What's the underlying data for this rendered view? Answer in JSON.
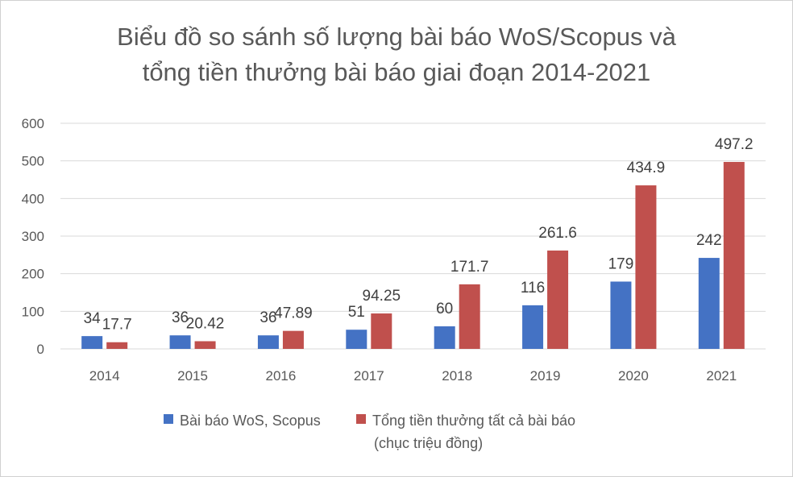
{
  "colors": {
    "series_1": "#4472C4",
    "series_2": "#C0504D",
    "grid": "#D9D9D9",
    "text": "#595959"
  },
  "chart_data": {
    "type": "bar",
    "title_lines": [
      "Biểu đồ so sánh số lượng bài báo WoS/Scopus và",
      "tổng tiền thưởng bài báo giai đoạn 2014-2021"
    ],
    "xlabel": "",
    "ylabel": "",
    "ylim": [
      0,
      600
    ],
    "yticks": [
      "0",
      "100",
      "200",
      "300",
      "400",
      "500",
      "600"
    ],
    "grid": true,
    "legend_position": "bottom",
    "categories": [
      "2014",
      "2015",
      "2016",
      "2017",
      "2018",
      "2019",
      "2020",
      "2021"
    ],
    "series": [
      {
        "name": "Bài báo WoS, Scopus",
        "values": [
          34,
          36,
          36,
          51,
          60,
          116,
          179,
          242
        ],
        "labels": [
          "34",
          "36",
          "36",
          "51",
          "60",
          "116",
          "179",
          "242"
        ]
      },
      {
        "name": "Tổng tiền thưởng tất cả bài báo (chục triệu đồng)",
        "name_lines": [
          "Tổng tiền thưởng tất cả bài báo",
          "(chục triệu đồng)"
        ],
        "values": [
          17.7,
          20.42,
          47.89,
          94.25,
          171.7,
          261.6,
          434.9,
          497.2
        ],
        "labels": [
          "17.7",
          "20.42",
          "47.89",
          "94.25",
          "171.7",
          "261.6",
          "434.9",
          "497.2"
        ]
      }
    ]
  }
}
